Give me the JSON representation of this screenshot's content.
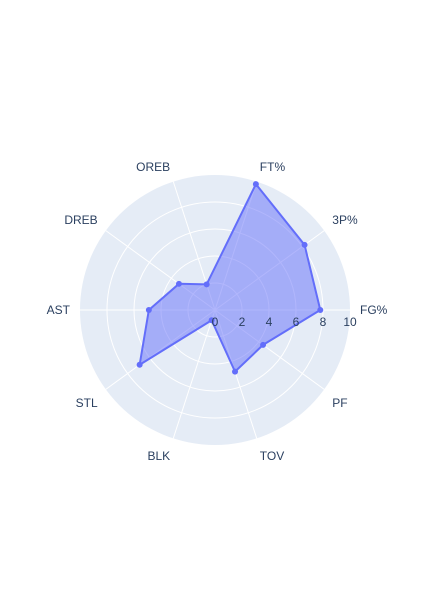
{
  "chart_data": {
    "type": "radar",
    "categories": [
      "FG%",
      "3P%",
      "FT%",
      "OREB",
      "DREB",
      "AST",
      "STL",
      "BLK",
      "TOV",
      "PF"
    ],
    "series": [
      {
        "values": [
          7.8,
          8.2,
          9.8,
          2.0,
          3.3,
          4.9,
          6.9,
          0.8,
          4.8,
          4.4
        ]
      }
    ],
    "radial_range": [
      0,
      10
    ],
    "radial_ticks": [
      "0",
      "2",
      "4",
      "6",
      "8",
      "10"
    ],
    "colors": {
      "polar_bg": "#e5ecf6",
      "grid": "#ffffff",
      "line": "#636efa",
      "fill": "rgba(99,110,250,0.5)",
      "text": "#2a3f5f"
    }
  }
}
